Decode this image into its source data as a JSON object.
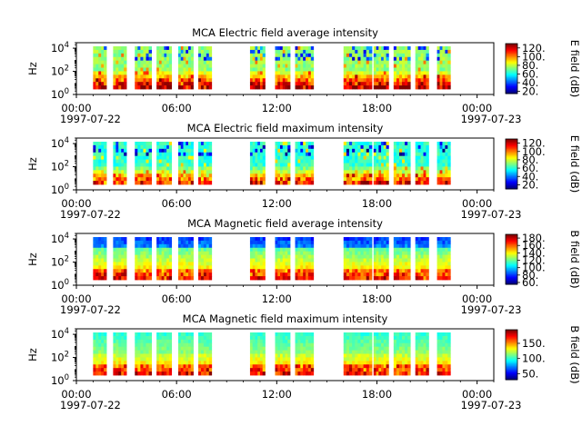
{
  "chart_data": [
    {
      "type": "heatmap",
      "title": "MCA  Electric field average intensity",
      "ylabel": "Hz",
      "yscale": "log",
      "ylim": [
        1,
        30000
      ],
      "y_ticks": [
        {
          "base": "10",
          "exp": "0"
        },
        {
          "base": "10",
          "exp": "2"
        },
        {
          "base": "10",
          "exp": "4"
        }
      ],
      "x_range": [
        "1997-07-22 00:00",
        "1997-07-23 01:00"
      ],
      "x_ticks": [
        "00:00",
        "06:00",
        "12:00",
        "18:00",
        "00:00"
      ],
      "x_dates": [
        "1997-07-22",
        "1997-07-23"
      ],
      "colorbar": {
        "label": "E field (dB)",
        "ticks": [
          "20.",
          "40.",
          "60.",
          "80.",
          "100.",
          "120."
        ],
        "range": [
          15,
          130
        ]
      },
      "colormap": "jet",
      "baseline": "green",
      "data_segments_hours": [
        [
          1.0,
          1.8
        ],
        [
          2.2,
          3.0
        ],
        [
          3.5,
          4.5
        ],
        [
          4.8,
          5.7
        ],
        [
          6.1,
          7.0
        ],
        [
          7.3,
          8.1
        ],
        [
          10.4,
          11.3
        ],
        [
          11.9,
          12.8
        ],
        [
          13.1,
          14.2
        ],
        [
          16.0,
          17.7
        ],
        [
          17.8,
          18.7
        ],
        [
          19.0,
          20.0
        ],
        [
          20.3,
          21.1
        ],
        [
          21.6,
          22.4
        ]
      ]
    },
    {
      "type": "heatmap",
      "title": "MCA  Electric field maximum intensity",
      "ylabel": "Hz",
      "yscale": "log",
      "ylim": [
        1,
        30000
      ],
      "y_ticks": [
        {
          "base": "10",
          "exp": "0"
        },
        {
          "base": "10",
          "exp": "2"
        },
        {
          "base": "10",
          "exp": "4"
        }
      ],
      "x_range": [
        "1997-07-22 00:00",
        "1997-07-23 01:00"
      ],
      "x_ticks": [
        "00:00",
        "06:00",
        "12:00",
        "18:00",
        "00:00"
      ],
      "x_dates": [
        "1997-07-22",
        "1997-07-23"
      ],
      "colorbar": {
        "label": "E field (dB)",
        "ticks": [
          "20.",
          "40.",
          "60.",
          "80.",
          "100.",
          "120."
        ],
        "range": [
          10,
          130
        ]
      },
      "colormap": "jet",
      "baseline": "cyan",
      "data_segments_hours": [
        [
          1.0,
          1.8
        ],
        [
          2.2,
          3.0
        ],
        [
          3.5,
          4.5
        ],
        [
          4.8,
          5.7
        ],
        [
          6.1,
          7.0
        ],
        [
          7.3,
          8.1
        ],
        [
          10.4,
          11.3
        ],
        [
          11.9,
          12.8
        ],
        [
          13.1,
          14.2
        ],
        [
          16.0,
          17.7
        ],
        [
          17.8,
          18.7
        ],
        [
          19.0,
          20.0
        ],
        [
          20.3,
          21.1
        ],
        [
          21.6,
          22.4
        ]
      ]
    },
    {
      "type": "heatmap",
      "title": "MCA  Magnetic field average intensity",
      "ylabel": "Hz",
      "yscale": "log",
      "ylim": [
        1,
        30000
      ],
      "y_ticks": [
        {
          "base": "10",
          "exp": "0"
        },
        {
          "base": "10",
          "exp": "2"
        },
        {
          "base": "10",
          "exp": "4"
        }
      ],
      "x_range": [
        "1997-07-22 00:00",
        "1997-07-23 01:00"
      ],
      "x_ticks": [
        "00:00",
        "06:00",
        "12:00",
        "18:00",
        "00:00"
      ],
      "x_dates": [
        "1997-07-22",
        "1997-07-23"
      ],
      "colorbar": {
        "label": "B field (dB)",
        "ticks": [
          "60.",
          "80.",
          "100.",
          "120.",
          "140.",
          "160.",
          "180."
        ],
        "range": [
          55,
          190
        ]
      },
      "colormap": "jet",
      "baseline": "cyan",
      "data_segments_hours": [
        [
          1.0,
          1.8
        ],
        [
          2.2,
          3.0
        ],
        [
          3.5,
          4.5
        ],
        [
          4.8,
          5.7
        ],
        [
          6.1,
          7.0
        ],
        [
          7.3,
          8.1
        ],
        [
          10.4,
          11.3
        ],
        [
          11.9,
          12.8
        ],
        [
          13.1,
          14.2
        ],
        [
          16.0,
          17.7
        ],
        [
          17.8,
          18.7
        ],
        [
          19.0,
          20.0
        ],
        [
          20.3,
          21.1
        ],
        [
          21.6,
          22.4
        ]
      ]
    },
    {
      "type": "heatmap",
      "title": "MCA  Magnetic field maximum intensity",
      "ylabel": "Hz",
      "yscale": "log",
      "ylim": [
        1,
        30000
      ],
      "y_ticks": [
        {
          "base": "10",
          "exp": "0"
        },
        {
          "base": "10",
          "exp": "2"
        },
        {
          "base": "10",
          "exp": "4"
        }
      ],
      "x_range": [
        "1997-07-22 00:00",
        "1997-07-23 01:00"
      ],
      "x_ticks": [
        "00:00",
        "06:00",
        "12:00",
        "18:00",
        "00:00"
      ],
      "x_dates": [
        "1997-07-22",
        "1997-07-23"
      ],
      "colorbar": {
        "label": "B field (dB)",
        "ticks": [
          "50.",
          "100.",
          "150."
        ],
        "range": [
          30,
          195
        ]
      },
      "colormap": "jet",
      "baseline": "cyan",
      "data_segments_hours": [
        [
          1.0,
          1.8
        ],
        [
          2.2,
          3.0
        ],
        [
          3.5,
          4.5
        ],
        [
          4.8,
          5.7
        ],
        [
          6.1,
          7.0
        ],
        [
          7.3,
          8.1
        ],
        [
          10.4,
          11.3
        ],
        [
          11.9,
          12.8
        ],
        [
          13.1,
          14.2
        ],
        [
          16.0,
          17.7
        ],
        [
          17.8,
          18.7
        ],
        [
          19.0,
          20.0
        ],
        [
          20.3,
          21.1
        ],
        [
          21.6,
          22.4
        ]
      ]
    }
  ]
}
